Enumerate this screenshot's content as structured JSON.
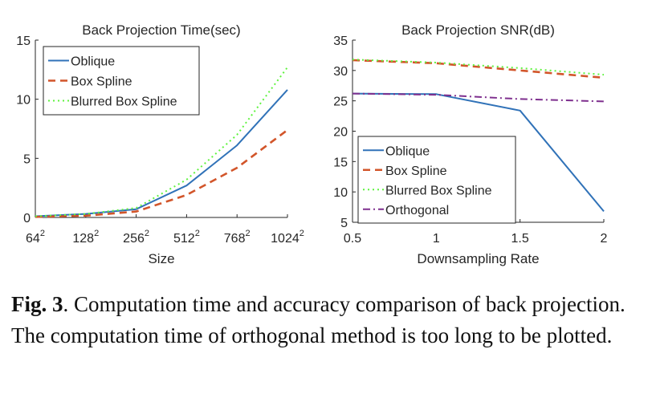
{
  "chart_data": [
    {
      "type": "line",
      "title": "Back Projection Time(sec)",
      "xlabel": "Size",
      "ylabel": "",
      "x_ticks": [
        {
          "base": "64",
          "exp": "2"
        },
        {
          "base": "128",
          "exp": "2"
        },
        {
          "base": "256",
          "exp": "2"
        },
        {
          "base": "512",
          "exp": "2"
        },
        {
          "base": "768",
          "exp": "2"
        },
        {
          "base": "1024",
          "exp": "2"
        }
      ],
      "ylim": [
        0,
        15
      ],
      "y_ticks": [
        0,
        5,
        10,
        15
      ],
      "legend_position": "top-left",
      "grid": false,
      "series": [
        {
          "name": "Oblique",
          "color": "#3072b8",
          "dash": "solid",
          "values": [
            0.1,
            0.3,
            0.7,
            2.7,
            6.1,
            10.8
          ]
        },
        {
          "name": "Box Spline",
          "color": "#d2552a",
          "dash": "dashed",
          "values": [
            0.05,
            0.15,
            0.5,
            1.9,
            4.2,
            7.4
          ]
        },
        {
          "name": "Blurred Box Spline",
          "color": "#5ff23f",
          "dash": "dotted",
          "values": [
            0.1,
            0.3,
            0.8,
            3.2,
            7.0,
            12.7
          ]
        }
      ]
    },
    {
      "type": "line",
      "title": "Back Projection SNR(dB)",
      "xlabel": "Downsampling Rate",
      "ylabel": "",
      "x": [
        0.5,
        1,
        1.5,
        2
      ],
      "x_ticks": [
        "0.5",
        "1",
        "1.5",
        "2"
      ],
      "xlim": [
        0.5,
        2
      ],
      "ylim": [
        5,
        35
      ],
      "y_ticks": [
        5,
        10,
        15,
        20,
        25,
        30,
        35
      ],
      "legend_position": "bottom-left",
      "grid": false,
      "series": [
        {
          "name": "Oblique",
          "color": "#3072b8",
          "dash": "solid",
          "values": [
            26.2,
            26.1,
            23.4,
            6.8
          ]
        },
        {
          "name": "Box Spline",
          "color": "#d2552a",
          "dash": "dashed",
          "values": [
            31.7,
            31.2,
            30.0,
            28.8
          ]
        },
        {
          "name": "Blurred Box Spline",
          "color": "#5ff23f",
          "dash": "dotted",
          "values": [
            31.8,
            31.3,
            30.4,
            29.3
          ]
        },
        {
          "name": "Orthogonal",
          "color": "#7e2f8e",
          "dash": "dashdot",
          "values": [
            26.2,
            26.0,
            25.3,
            24.9
          ]
        }
      ]
    }
  ],
  "caption": {
    "label": "Fig. 3",
    "text": ".  Computation time and accuracy comparison of back projection. The computation time of orthogonal method is too long to be plotted."
  }
}
